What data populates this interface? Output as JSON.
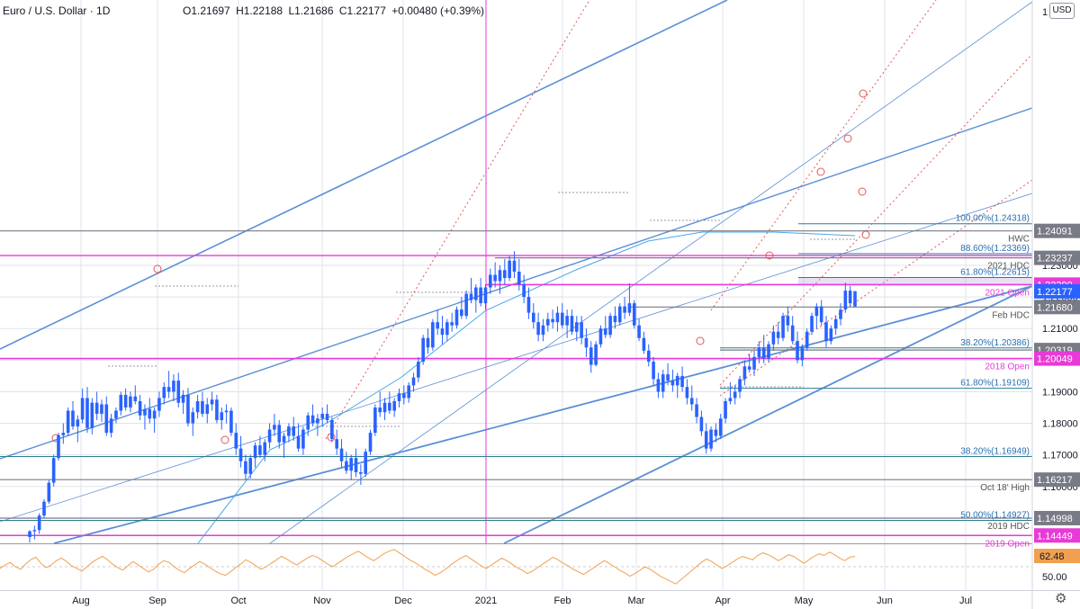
{
  "header": {
    "title": "Euro / U.S. Dollar · 1D",
    "open": "O1.21697",
    "high": "H1.22188",
    "low": "L1.21686",
    "close": "C1.22177",
    "change": "+0.00480 (+0.39%)",
    "currency": "USD"
  },
  "chart_data": {
    "type": "candlestick",
    "symbol": "EUR/USD",
    "interval": "1D",
    "x_axis": {
      "ticks": [
        "Aug",
        "Sep",
        "Oct",
        "Nov",
        "Dec",
        "2021",
        "Feb",
        "Mar",
        "Apr",
        "May",
        "Jun",
        "Jul"
      ]
    },
    "y_axis": {
      "range": [
        1.142,
        1.314
      ],
      "ticks": [
        "1.16000",
        "1.17000",
        "1.18000",
        "1.19000",
        "1.20000",
        "1.21000",
        "1.22000",
        "1.23000"
      ],
      "top_label": "1"
    },
    "candles": [
      [
        1.144,
        1.1462,
        1.1422,
        1.1458
      ],
      [
        1.1458,
        1.1476,
        1.1432,
        1.1462
      ],
      [
        1.1462,
        1.1515,
        1.145,
        1.1508
      ],
      [
        1.1508,
        1.156,
        1.15,
        1.1552
      ],
      [
        1.1552,
        1.162,
        1.1545,
        1.1612
      ],
      [
        1.1612,
        1.17,
        1.16,
        1.169
      ],
      [
        1.169,
        1.177,
        1.1682,
        1.1762
      ],
      [
        1.1762,
        1.18,
        1.1735,
        1.177
      ],
      [
        1.177,
        1.185,
        1.176,
        1.184
      ],
      [
        1.184,
        1.187,
        1.178,
        1.179
      ],
      [
        1.179,
        1.1825,
        1.174,
        1.1812
      ],
      [
        1.1812,
        1.191,
        1.18,
        1.188
      ],
      [
        1.188,
        1.1915,
        1.177,
        1.1785
      ],
      [
        1.1785,
        1.188,
        1.1765,
        1.1865
      ],
      [
        1.1865,
        1.19,
        1.181,
        1.183
      ],
      [
        1.183,
        1.1875,
        1.1805,
        1.186
      ],
      [
        1.186,
        1.1885,
        1.176,
        1.177
      ],
      [
        1.177,
        1.183,
        1.1755,
        1.1815
      ],
      [
        1.1815,
        1.185,
        1.18,
        1.184
      ],
      [
        1.184,
        1.19,
        1.1825,
        1.189
      ],
      [
        1.189,
        1.191,
        1.184,
        1.185
      ],
      [
        1.185,
        1.19,
        1.1835,
        1.1885
      ],
      [
        1.1885,
        1.192,
        1.186,
        1.187
      ],
      [
        1.187,
        1.189,
        1.181,
        1.1825
      ],
      [
        1.1825,
        1.186,
        1.178,
        1.1845
      ],
      [
        1.1845,
        1.188,
        1.18,
        1.1815
      ],
      [
        1.1815,
        1.185,
        1.177,
        1.184
      ],
      [
        1.184,
        1.19,
        1.182,
        1.188
      ],
      [
        1.188,
        1.193,
        1.186,
        1.1915
      ],
      [
        1.1915,
        1.1966,
        1.188,
        1.19
      ],
      [
        1.19,
        1.1955,
        1.187,
        1.1935
      ],
      [
        1.1935,
        1.196,
        1.185,
        1.1865
      ],
      [
        1.1865,
        1.1905,
        1.183,
        1.189
      ],
      [
        1.189,
        1.1912,
        1.179,
        1.18
      ],
      [
        1.18,
        1.185,
        1.176,
        1.1835
      ],
      [
        1.1835,
        1.189,
        1.1815,
        1.187
      ],
      [
        1.187,
        1.19,
        1.182,
        1.183
      ],
      [
        1.183,
        1.188,
        1.18,
        1.186
      ],
      [
        1.186,
        1.19,
        1.184,
        1.1875
      ],
      [
        1.1875,
        1.189,
        1.18,
        1.181
      ],
      [
        1.181,
        1.185,
        1.178,
        1.1835
      ],
      [
        1.1835,
        1.186,
        1.18,
        1.184
      ],
      [
        1.184,
        1.185,
        1.176,
        1.177
      ],
      [
        1.177,
        1.18,
        1.17,
        1.172
      ],
      [
        1.172,
        1.176,
        1.166,
        1.168
      ],
      [
        1.168,
        1.17,
        1.162,
        1.164
      ],
      [
        1.164,
        1.17,
        1.1625,
        1.169
      ],
      [
        1.169,
        1.174,
        1.166,
        1.173
      ],
      [
        1.173,
        1.176,
        1.169,
        1.17
      ],
      [
        1.17,
        1.175,
        1.168,
        1.174
      ],
      [
        1.174,
        1.18,
        1.172,
        1.178
      ],
      [
        1.178,
        1.183,
        1.176,
        1.1795
      ],
      [
        1.1795,
        1.181,
        1.172,
        1.174
      ],
      [
        1.174,
        1.177,
        1.169,
        1.176
      ],
      [
        1.176,
        1.18,
        1.174,
        1.179
      ],
      [
        1.179,
        1.182,
        1.1745,
        1.176
      ],
      [
        1.176,
        1.18,
        1.171,
        1.172
      ],
      [
        1.172,
        1.179,
        1.17,
        1.178
      ],
      [
        1.178,
        1.1835,
        1.176,
        1.1825
      ],
      [
        1.1825,
        1.186,
        1.179,
        1.18
      ],
      [
        1.18,
        1.183,
        1.176,
        1.1815
      ],
      [
        1.1815,
        1.185,
        1.179,
        1.183
      ],
      [
        1.183,
        1.186,
        1.18,
        1.181
      ],
      [
        1.181,
        1.182,
        1.174,
        1.175
      ],
      [
        1.175,
        1.178,
        1.17,
        1.172
      ],
      [
        1.172,
        1.175,
        1.166,
        1.168
      ],
      [
        1.168,
        1.171,
        1.164,
        1.165
      ],
      [
        1.165,
        1.17,
        1.162,
        1.169
      ],
      [
        1.169,
        1.172,
        1.163,
        1.1645
      ],
      [
        1.1645,
        1.167,
        1.1605,
        1.164
      ],
      [
        1.164,
        1.172,
        1.163,
        1.171
      ],
      [
        1.171,
        1.178,
        1.17,
        1.177
      ],
      [
        1.177,
        1.186,
        1.176,
        1.185
      ],
      [
        1.185,
        1.19,
        1.182,
        1.1835
      ],
      [
        1.1835,
        1.188,
        1.181,
        1.1865
      ],
      [
        1.1865,
        1.19,
        1.183,
        1.184
      ],
      [
        1.184,
        1.188,
        1.182,
        1.187
      ],
      [
        1.187,
        1.191,
        1.185,
        1.1895
      ],
      [
        1.1895,
        1.192,
        1.186,
        1.188
      ],
      [
        1.188,
        1.193,
        1.1865,
        1.192
      ],
      [
        1.192,
        1.196,
        1.19,
        1.1945
      ],
      [
        1.1945,
        1.201,
        1.193,
        1.1995
      ],
      [
        1.1995,
        1.208,
        1.1985,
        1.207
      ],
      [
        1.207,
        1.21,
        1.202,
        1.204
      ],
      [
        1.204,
        1.213,
        1.203,
        1.212
      ],
      [
        1.212,
        1.216,
        1.208,
        1.21
      ],
      [
        1.21,
        1.214,
        1.205,
        1.208
      ],
      [
        1.208,
        1.213,
        1.206,
        1.212
      ],
      [
        1.212,
        1.215,
        1.209,
        1.211
      ],
      [
        1.211,
        1.217,
        1.21,
        1.216
      ],
      [
        1.216,
        1.22,
        1.213,
        1.214
      ],
      [
        1.214,
        1.222,
        1.213,
        1.221
      ],
      [
        1.221,
        1.226,
        1.218,
        1.219
      ],
      [
        1.219,
        1.224,
        1.215,
        1.223
      ],
      [
        1.223,
        1.226,
        1.217,
        1.218
      ],
      [
        1.218,
        1.224,
        1.216,
        1.223
      ],
      [
        1.223,
        1.229,
        1.221,
        1.227
      ],
      [
        1.227,
        1.231,
        1.223,
        1.225
      ],
      [
        1.225,
        1.23,
        1.221,
        1.2285
      ],
      [
        1.2285,
        1.232,
        1.224,
        1.226
      ],
      [
        1.226,
        1.233,
        1.225,
        1.2315
      ],
      [
        1.2315,
        1.2345,
        1.226,
        1.228
      ],
      [
        1.228,
        1.232,
        1.222,
        1.224
      ],
      [
        1.224,
        1.227,
        1.218,
        1.22
      ],
      [
        1.22,
        1.223,
        1.213,
        1.215
      ],
      [
        1.215,
        1.218,
        1.21,
        1.212
      ],
      [
        1.212,
        1.215,
        1.206,
        1.208
      ],
      [
        1.208,
        1.213,
        1.206,
        1.211
      ],
      [
        1.211,
        1.215,
        1.209,
        1.213
      ],
      [
        1.213,
        1.216,
        1.21,
        1.212
      ],
      [
        1.212,
        1.217,
        1.209,
        1.215
      ],
      [
        1.215,
        1.218,
        1.21,
        1.211
      ],
      [
        1.211,
        1.216,
        1.207,
        1.214
      ],
      [
        1.214,
        1.216,
        1.208,
        1.209
      ],
      [
        1.209,
        1.214,
        1.206,
        1.212
      ],
      [
        1.212,
        1.214,
        1.205,
        1.207
      ],
      [
        1.207,
        1.21,
        1.201,
        1.204
      ],
      [
        1.204,
        1.206,
        1.196,
        1.1985
      ],
      [
        1.1985,
        1.206,
        1.198,
        1.205
      ],
      [
        1.205,
        1.211,
        1.204,
        1.21
      ],
      [
        1.21,
        1.214,
        1.207,
        1.208
      ],
      [
        1.208,
        1.215,
        1.207,
        1.214
      ],
      [
        1.214,
        1.217,
        1.21,
        1.212
      ],
      [
        1.212,
        1.218,
        1.211,
        1.217
      ],
      [
        1.217,
        1.22,
        1.213,
        1.215
      ],
      [
        1.215,
        1.2243,
        1.214,
        1.218
      ],
      [
        1.218,
        1.219,
        1.21,
        1.211
      ],
      [
        1.211,
        1.213,
        1.206,
        1.207
      ],
      [
        1.207,
        1.209,
        1.202,
        1.203
      ],
      [
        1.203,
        1.205,
        1.198,
        1.1995
      ],
      [
        1.1995,
        1.201,
        1.192,
        1.194
      ],
      [
        1.194,
        1.196,
        1.188,
        1.19
      ],
      [
        1.19,
        1.197,
        1.188,
        1.1955
      ],
      [
        1.1955,
        1.199,
        1.192,
        1.1935
      ],
      [
        1.1935,
        1.197,
        1.19,
        1.192
      ],
      [
        1.192,
        1.196,
        1.188,
        1.195
      ],
      [
        1.195,
        1.198,
        1.19,
        1.1915
      ],
      [
        1.1915,
        1.194,
        1.186,
        1.188
      ],
      [
        1.188,
        1.192,
        1.184,
        1.186
      ],
      [
        1.186,
        1.188,
        1.18,
        1.182
      ],
      [
        1.182,
        1.184,
        1.176,
        1.1775
      ],
      [
        1.1775,
        1.18,
        1.1704,
        1.172
      ],
      [
        1.172,
        1.179,
        1.171,
        1.178
      ],
      [
        1.178,
        1.18,
        1.174,
        1.176
      ],
      [
        1.176,
        1.183,
        1.175,
        1.1815
      ],
      [
        1.1815,
        1.188,
        1.18,
        1.187
      ],
      [
        1.187,
        1.193,
        1.186,
        1.188
      ],
      [
        1.188,
        1.192,
        1.186,
        1.19
      ],
      [
        1.19,
        1.195,
        1.188,
        1.194
      ],
      [
        1.194,
        1.2,
        1.192,
        1.198
      ],
      [
        1.198,
        1.202,
        1.196,
        1.197
      ],
      [
        1.197,
        1.203,
        1.195,
        1.201
      ],
      [
        1.201,
        1.206,
        1.199,
        1.204
      ],
      [
        1.204,
        1.208,
        1.199,
        1.2005
      ],
      [
        1.2005,
        1.206,
        1.1995,
        1.205
      ],
      [
        1.205,
        1.211,
        1.203,
        1.209
      ],
      [
        1.209,
        1.212,
        1.205,
        1.207
      ],
      [
        1.207,
        1.215,
        1.206,
        1.214
      ],
      [
        1.214,
        1.217,
        1.209,
        1.211
      ],
      [
        1.211,
        1.214,
        1.205,
        1.206
      ],
      [
        1.206,
        1.209,
        1.199,
        1.2
      ],
      [
        1.2,
        1.205,
        1.198,
        1.204
      ],
      [
        1.204,
        1.21,
        1.203,
        1.209
      ],
      [
        1.209,
        1.215,
        1.208,
        1.214
      ],
      [
        1.214,
        1.218,
        1.21,
        1.217
      ],
      [
        1.217,
        1.219,
        1.211,
        1.212
      ],
      [
        1.212,
        1.214,
        1.204,
        1.206
      ],
      [
        1.206,
        1.211,
        1.205,
        1.21
      ],
      [
        1.21,
        1.214,
        1.208,
        1.213
      ],
      [
        1.213,
        1.218,
        1.211,
        1.216
      ],
      [
        1.216,
        1.2245,
        1.215,
        1.222
      ],
      [
        1.222,
        1.2235,
        1.217,
        1.218
      ],
      [
        1.217,
        1.2219,
        1.2169,
        1.2218
      ]
    ],
    "rsi": {
      "last": "62.48",
      "level_label": "50.00",
      "values": [
        48,
        52,
        55,
        50,
        47,
        53,
        58,
        61,
        54,
        49,
        52,
        57,
        60,
        56,
        51,
        48,
        45,
        50,
        55,
        59,
        62,
        58,
        53,
        49,
        46,
        51,
        56,
        52,
        48,
        44,
        47,
        53,
        57,
        55,
        50,
        46,
        43,
        48,
        52,
        56,
        53,
        49,
        45,
        42,
        40,
        44,
        49,
        53,
        58,
        55,
        51,
        47,
        50,
        54,
        58,
        62,
        59,
        55,
        52,
        56,
        60,
        63,
        61,
        57,
        53,
        50,
        54,
        58,
        62,
        65,
        68,
        64,
        60,
        57,
        61,
        65,
        68,
        70,
        66,
        62,
        58,
        55,
        51,
        47,
        44,
        40,
        43,
        47,
        52,
        56,
        60,
        63,
        59,
        55,
        51,
        48,
        52,
        56,
        60,
        57,
        53,
        49,
        46,
        42,
        45,
        49,
        53,
        57,
        61,
        58,
        54,
        51,
        47,
        44,
        41,
        45,
        49,
        53,
        57,
        54,
        50,
        46,
        43,
        39,
        42,
        46,
        50,
        47,
        43,
        39,
        36,
        33,
        30,
        35,
        40,
        45,
        50,
        55,
        59,
        56,
        52,
        48,
        51,
        55,
        59,
        62,
        60,
        58,
        63,
        66,
        64,
        61,
        57,
        60,
        64,
        62,
        58,
        54,
        58,
        62,
        65,
        63,
        67,
        64,
        60,
        57,
        61,
        62
      ]
    },
    "levels": [
      {
        "label": "1.24091",
        "name": "HWC",
        "value": 1.24091,
        "color": "#787b86"
      },
      {
        "label": "1.23237",
        "name": "2021 HDC",
        "value": 1.23237,
        "color": "#787b86"
      },
      {
        "label": "1.22390",
        "name": "2021 Open",
        "value": 1.2239,
        "color": "#e83ad6"
      },
      {
        "label": "1.21680",
        "name": "Feb HDC",
        "value": 1.2168,
        "color": "#787b86"
      },
      {
        "label": "1.20319",
        "name": "",
        "value": 1.20319,
        "color": "#787b86"
      },
      {
        "label": "1.20049",
        "name": "2018 Open",
        "value": 1.20049,
        "color": "#e83ad6"
      },
      {
        "label": "1.16217",
        "name": "Oct 18' High",
        "value": 1.16217,
        "color": "#787b86"
      },
      {
        "label": "1.14998",
        "name": "2019 HDC",
        "value": 1.14998,
        "color": "#787b86"
      },
      {
        "label": "1.14449",
        "name": "2019 Open",
        "value": 1.14449,
        "color": "#e83ad6"
      }
    ],
    "price_tag": {
      "label": "1.22177",
      "value": 1.22177,
      "color": "#2962ff"
    },
    "fib_levels": [
      {
        "label": "100.00%(1.24318)",
        "value": 1.24318
      },
      {
        "label": "88.60%(1.23369)",
        "value": 1.23369
      },
      {
        "label": "61.80%(1.22615)",
        "value": 1.22615
      },
      {
        "label": "38.20%(1.20386)",
        "value": 1.20386
      },
      {
        "label": "61.80%(1.19109)",
        "value": 1.19109
      },
      {
        "label": "38.20%(1.16949)",
        "value": 1.16949
      },
      {
        "label": "50.00%(1.14927)",
        "value": 1.14927
      }
    ],
    "colors": {
      "candle": "#2962ff",
      "channel": "#5b8fd6",
      "magenta": "#e83ad6",
      "rsi": "#f0a050",
      "grid": "#e0e3eb",
      "axis_text": "#131722"
    }
  }
}
